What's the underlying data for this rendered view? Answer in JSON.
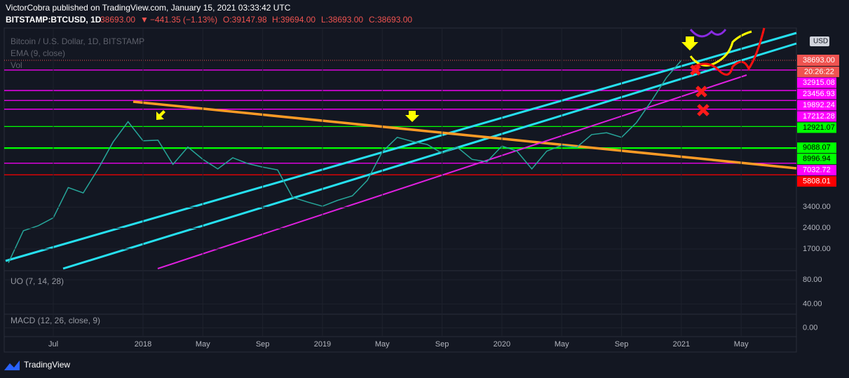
{
  "header": {
    "publisher": "VictorCobra published on TradingView.com, January 15, 2021 03:33:42 UTC",
    "symbol": "BITSTAMP:BTCUSD, 1D",
    "last": "38693.00",
    "arrow": "▼",
    "change": "−441.35 (−1.13%)",
    "open": "O:39147.98",
    "high": "H:39694.00",
    "low": "L:38693.00",
    "close": "C:38693.00"
  },
  "chart_data": {
    "type": "line",
    "title": "Bitcoin / U.S. Dollar, 1D, BITSTAMP",
    "indicators": [
      "EMA (9, close)",
      "Vol"
    ],
    "x": [
      "2017-04",
      "2017-05",
      "2017-06",
      "2017-07",
      "2017-08",
      "2017-09",
      "2017-10",
      "2017-11",
      "2017-12",
      "2018-01",
      "2018-02",
      "2018-03",
      "2018-04",
      "2018-05",
      "2018-06",
      "2018-07",
      "2018-08",
      "2018-09",
      "2018-10",
      "2018-11",
      "2018-12",
      "2019-01",
      "2019-02",
      "2019-03",
      "2019-04",
      "2019-05",
      "2019-06",
      "2019-07",
      "2019-08",
      "2019-09",
      "2019-10",
      "2019-11",
      "2019-12",
      "2020-01",
      "2020-02",
      "2020-03",
      "2020-04",
      "2020-05",
      "2020-06",
      "2020-07",
      "2020-08",
      "2020-09",
      "2020-10",
      "2020-11",
      "2020-12",
      "2021-01"
    ],
    "values": [
      1350,
      2300,
      2500,
      2850,
      4700,
      4300,
      6400,
      10000,
      14000,
      10200,
      10300,
      6900,
      9200,
      7500,
      6400,
      7700,
      7000,
      6600,
      6300,
      4000,
      3700,
      3450,
      3800,
      4100,
      5300,
      8500,
      10800,
      10100,
      9600,
      8300,
      9200,
      7500,
      7200,
      9350,
      8600,
      6400,
      8600,
      9450,
      9150,
      11300,
      11650,
      10800,
      13800,
      19700,
      29000,
      38693
    ],
    "value_labels_last": "38693.00",
    "color": "#26a69a",
    "log": true,
    "ylim": [
      1200,
      66000
    ],
    "yticks": [
      {
        "value": 3400,
        "label": "3400.00"
      },
      {
        "value": 2400,
        "label": "2400.00"
      },
      {
        "value": 1700,
        "label": "1700.00"
      }
    ],
    "xticks": [
      {
        "value": "2017-07",
        "label": "Jul"
      },
      {
        "value": "2018-01",
        "label": "2018"
      },
      {
        "value": "2018-05",
        "label": "May"
      },
      {
        "value": "2018-09",
        "label": "Sep"
      },
      {
        "value": "2019-01",
        "label": "2019"
      },
      {
        "value": "2019-05",
        "label": "May"
      },
      {
        "value": "2019-09",
        "label": "Sep"
      },
      {
        "value": "2020-01",
        "label": "2020"
      },
      {
        "value": "2020-05",
        "label": "May"
      },
      {
        "value": "2020-09",
        "label": "Sep"
      },
      {
        "value": "2021-01",
        "label": "2021"
      },
      {
        "value": "2021-05",
        "label": "May"
      }
    ],
    "levels": [
      {
        "value": 32915.08,
        "label": "32915.08",
        "color": "#ff00ff"
      },
      {
        "value": 23456.93,
        "label": "23456.93",
        "color": "#ff00ff"
      },
      {
        "value": 19892.24,
        "label": "19892.24",
        "color": "#ff00ff"
      },
      {
        "value": 17212.28,
        "label": "17212.28",
        "color": "#ff00ff"
      },
      {
        "value": 12921.07,
        "label": "12921.07",
        "color": "#00ff00"
      },
      {
        "value": 9088.07,
        "label": "9088.07",
        "color": "#00ff00"
      },
      {
        "value": 8996.94,
        "label": "8996.94",
        "color": "#00ff00"
      },
      {
        "value": 7032.72,
        "label": "7032.72",
        "color": "#ff00ff"
      },
      {
        "value": 5808.01,
        "label": "5808.01",
        "color": "#ff0000"
      }
    ],
    "countdown": "20:26:22",
    "currency": "USD"
  },
  "oscillators": [
    {
      "title": "UO (7, 14, 28)",
      "ylim": [
        23,
        94
      ],
      "yticks": [
        {
          "value": 80,
          "label": "80.00"
        },
        {
          "value": 40,
          "label": "40.00"
        }
      ]
    },
    {
      "title": "MACD (12, 26, close, 9)",
      "ylim": [
        -2500,
        2500
      ],
      "yticks": [
        {
          "value": 0,
          "label": "0.00"
        }
      ]
    }
  ],
  "footer": {
    "brand": "TradingView"
  }
}
